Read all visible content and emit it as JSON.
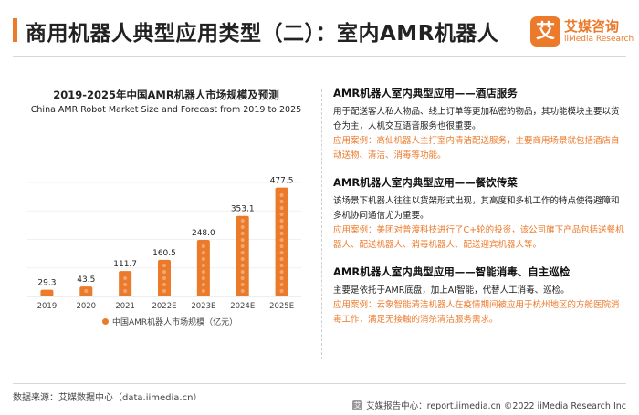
{
  "header": {
    "title": "商用机器人典型应用类型（二）：室内AMR机器人",
    "logo_mark": "艾",
    "logo_cn": "艾媒咨询",
    "logo_en": "iiMedia Research"
  },
  "chart_data": {
    "type": "bar",
    "title": "2019-2025年中国AMR机器人市场规模及预测",
    "subtitle": "China AMR Robot Market Size and Forecast from 2019 to 2025",
    "categories": [
      "2019",
      "2020",
      "2021",
      "2022E",
      "2023E",
      "2024E",
      "2025E"
    ],
    "series": [
      {
        "name": "中国AMR机器人市场规模（亿元）",
        "values": [
          29.3,
          43.5,
          111.7,
          160.5,
          248.0,
          353.1,
          477.5
        ]
      }
    ],
    "value_labels": [
      "29.3",
      "43.5",
      "111.7",
      "160.5",
      "248.0",
      "353.1",
      "477.5"
    ],
    "ylim": [
      0,
      500
    ],
    "grid": true,
    "legend_position": "bottom",
    "color": "#ec7a2b"
  },
  "sections": [
    {
      "heading": "AMR机器人室内典型应用——酒店服务",
      "desc": "用于配送客人私人物品、线上订单等更加私密的物品，其功能模块主要以货仓为主，人机交互语音服务也很重要。",
      "case": "应用案例：高仙机器人主打室内清洁配送服务，主要商用场景就包括酒店自动送物、清洁、消毒等功能。"
    },
    {
      "heading": "AMR机器人室内典型应用——餐饮传菜",
      "desc": "该场景下机器人往往以货架形式出现，其高度和多机工作的特点使得避障和多机协同通信尤为重要。",
      "case": "应用案例：美团对普渡科技进行了C+轮的投资，该公司旗下产品包括送餐机器人、配送机器人、消毒机器人、配送迎宾机器人等。"
    },
    {
      "heading": "AMR机器人室内典型应用——智能消毒、自主巡检",
      "desc": "主要是依托于AMR底盘，加上AI智能，代替人工消毒、巡检。",
      "case": "应用案例：云象智能清洁机器人在疫情期间被应用于杭州地区的方舱医院消毒工作，满足无接触的消杀清洁服务需求。"
    }
  ],
  "footer": {
    "source": "数据来源：艾媒数据中心（data.iimedia.cn）",
    "right": "艾媒报告中心：report.iimedia.cn   ©2022  iiMedia Research  Inc",
    "logo_glyph": "艾"
  }
}
